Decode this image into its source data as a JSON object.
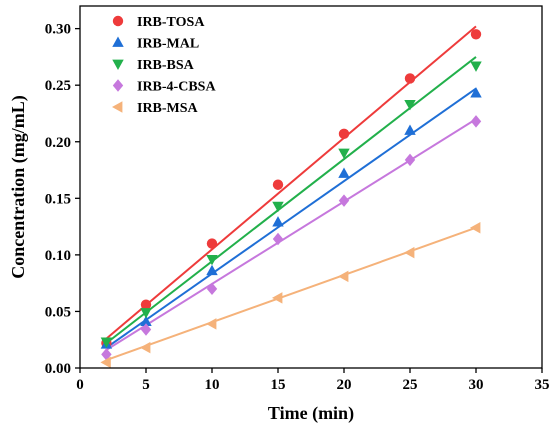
{
  "chart_data": {
    "type": "scatter",
    "title": "",
    "xlabel": "Time (min)",
    "ylabel": "Concentration (mg/mL)",
    "xlim": [
      0,
      35
    ],
    "ylim": [
      0,
      0.32
    ],
    "xticks": [
      "0",
      "5",
      "10",
      "15",
      "20",
      "25",
      "30",
      "35"
    ],
    "yticks": [
      "0.00",
      "0.05",
      "0.10",
      "0.15",
      "0.20",
      "0.25",
      "0.30"
    ],
    "grid": false,
    "legend_position": "top-left",
    "x": [
      2,
      5,
      10,
      15,
      20,
      25,
      30
    ],
    "series": [
      {
        "name": "IRB-TOSA",
        "marker": "circle",
        "color": "#ee3b3b",
        "values": [
          0.022,
          0.056,
          0.11,
          0.162,
          0.207,
          0.256,
          0.295
        ],
        "fit": {
          "x": [
            2,
            30
          ],
          "y": [
            0.026,
            0.302
          ]
        }
      },
      {
        "name": "IRB-MAL",
        "marker": "triangle-up",
        "color": "#1f6fd6",
        "values": [
          0.021,
          0.041,
          0.086,
          0.129,
          0.172,
          0.21,
          0.243
        ],
        "fit": {
          "x": [
            2,
            30
          ],
          "y": [
            0.018,
            0.247
          ]
        }
      },
      {
        "name": "IRB-BSA",
        "marker": "triangle-down",
        "color": "#22b04b",
        "values": [
          0.023,
          0.049,
          0.096,
          0.143,
          0.19,
          0.233,
          0.267
        ],
        "fit": {
          "x": [
            2,
            30
          ],
          "y": [
            0.022,
            0.275
          ]
        }
      },
      {
        "name": "IRB-4-CBSA",
        "marker": "diamond",
        "color": "#c678dd",
        "values": [
          0.012,
          0.034,
          0.07,
          0.114,
          0.148,
          0.184,
          0.218
        ],
        "fit": {
          "x": [
            2,
            30
          ],
          "y": [
            0.016,
            0.22
          ]
        }
      },
      {
        "name": "IRB-MSA",
        "marker": "triangle-left",
        "color": "#f5b27a",
        "values": [
          0.005,
          0.018,
          0.039,
          0.062,
          0.081,
          0.102,
          0.124
        ],
        "fit": {
          "x": [
            2,
            30
          ],
          "y": [
            0.007,
            0.124
          ]
        }
      }
    ]
  }
}
